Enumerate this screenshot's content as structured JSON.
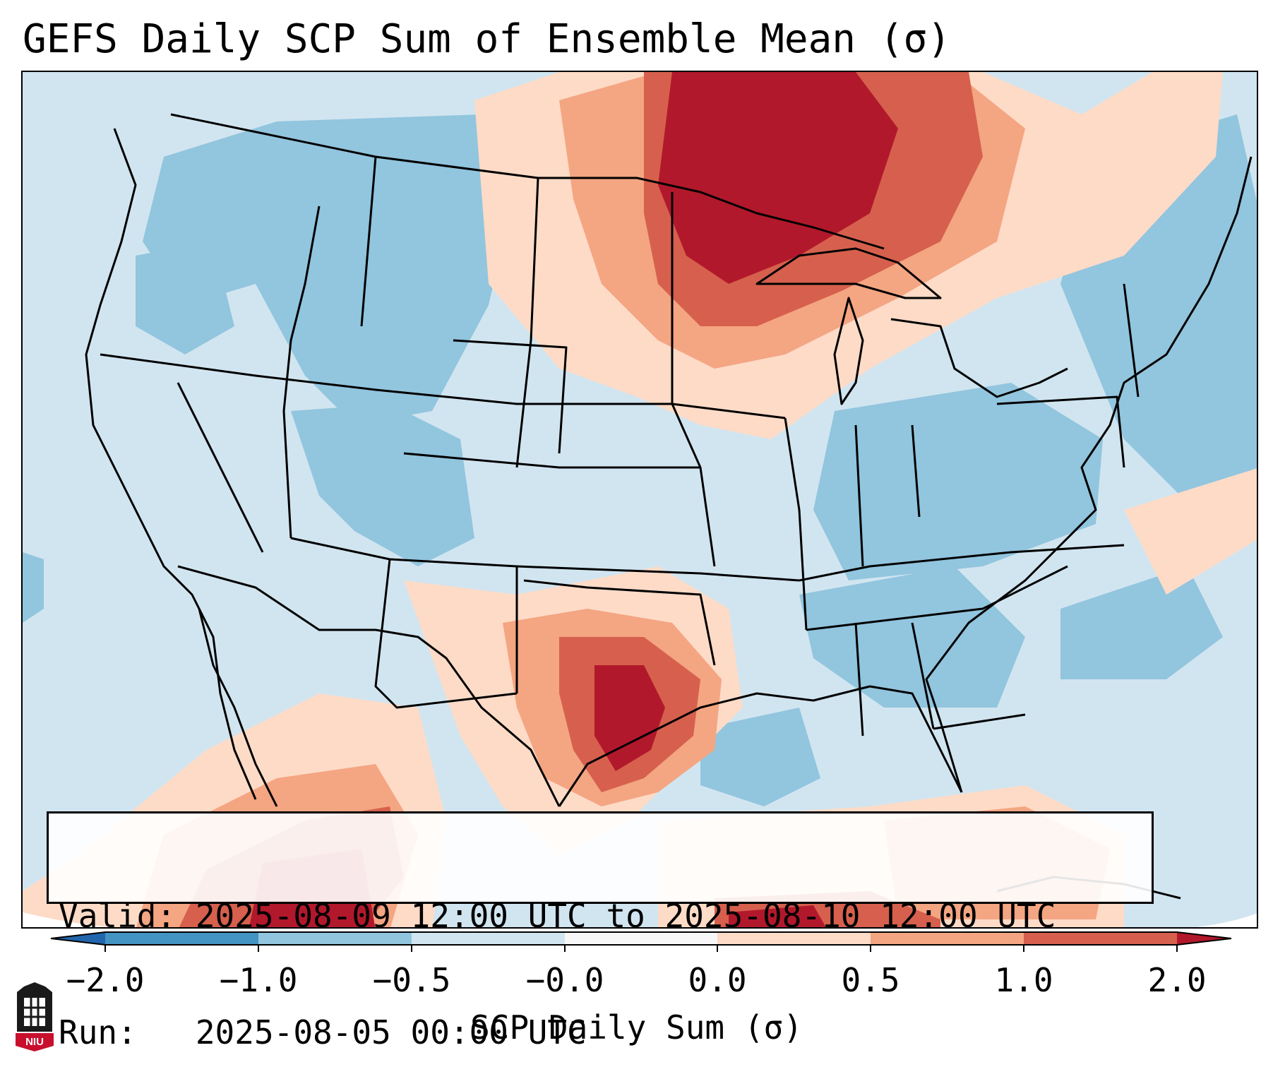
{
  "title": "GEFS Daily SCP Sum of Ensemble Mean (σ)",
  "info": {
    "valid_line": "Valid: 2025-08-09 12:00 UTC to 2025-08-10 12:00 UTC",
    "run_line": "Run:   2025-08-05 00:00 UTC"
  },
  "colorbar": {
    "label": "SCP Daily Sum (σ)",
    "ticks": [
      "−2.0",
      "−1.0",
      "−0.5",
      "−0.0",
      "0.0",
      "0.5",
      "1.0",
      "2.0"
    ],
    "bins": [
      {
        "color": "#2166ac",
        "range": "< -2.0"
      },
      {
        "color": "#4393c3",
        "range": "-2.0 to -1.0"
      },
      {
        "color": "#92c5de",
        "range": "-1.0 to -0.5"
      },
      {
        "color": "#d1e5f0",
        "range": "-0.5 to -0.0"
      },
      {
        "color": "#f7f7f7",
        "range": "-0.0 to 0.0"
      },
      {
        "color": "#fddbc7",
        "range": "0.0 to 0.5"
      },
      {
        "color": "#f4a582",
        "range": "0.5 to 1.0"
      },
      {
        "color": "#d6604d",
        "range": "1.0 to 2.0"
      },
      {
        "color": "#b2182b",
        "range": "> 2.0"
      }
    ]
  },
  "map": {
    "region": "Contiguous United States",
    "high_anomaly_areas": [
      "Upper Midwest / Great Lakes",
      "Texas",
      "Western Mexico",
      "Southern Gulf of Mexico"
    ],
    "low_anomaly_areas": [
      "Northern Rockies",
      "Central Rockies",
      "Ohio Valley",
      "Northeast",
      "Western Atlantic"
    ]
  },
  "logo": {
    "text": "NIU"
  }
}
